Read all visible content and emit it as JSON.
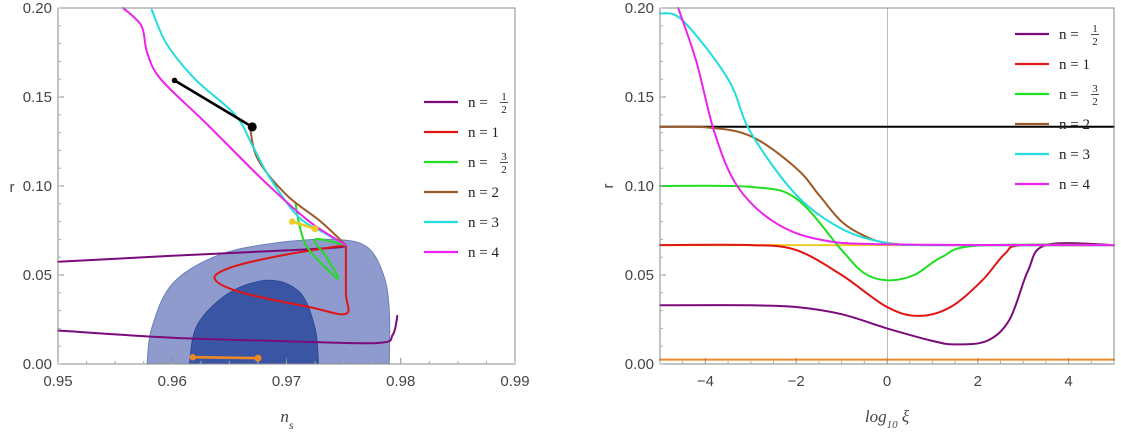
{
  "chart_data": [
    {
      "type": "line",
      "xlabel": "n_s",
      "ylabel": "r",
      "xlim": [
        0.95,
        0.99
      ],
      "ylim": [
        0.0,
        0.2
      ],
      "xticks": [
        "0.95",
        "0.96",
        "0.97",
        "0.98",
        "0.99"
      ],
      "yticks": [
        "0.00",
        "0.05",
        "0.10",
        "0.15",
        "0.20"
      ],
      "legend": {
        "placement": "right",
        "entries": [
          {
            "prefix": "n = ",
            "num": "1",
            "den": "2",
            "color": "#7b0a7b"
          },
          {
            "prefix": "n = 1",
            "color": "#e01414"
          },
          {
            "prefix": "n = ",
            "num": "3",
            "den": "2",
            "color": "#22dd22"
          },
          {
            "prefix": "n = 2",
            "color": "#9b5a28"
          },
          {
            "prefix": "n = 3",
            "color": "#22dddd"
          },
          {
            "prefix": "n = 4",
            "color": "#ee22ee"
          }
        ]
      },
      "contours": [
        {
          "level": "95%",
          "color": "#8e9bcc",
          "points": [
            [
              0.9578,
              0.0
            ],
            [
              0.9582,
              0.02
            ],
            [
              0.96,
              0.045
            ],
            [
              0.964,
              0.061
            ],
            [
              0.969,
              0.068
            ],
            [
              0.974,
              0.07
            ],
            [
              0.977,
              0.066
            ],
            [
              0.9785,
              0.05
            ],
            [
              0.979,
              0.03
            ],
            [
              0.979,
              0.0
            ]
          ]
        },
        {
          "level": "68%",
          "color": "#3b55a5",
          "points": [
            [
              0.9615,
              0.0
            ],
            [
              0.9622,
              0.022
            ],
            [
              0.965,
              0.04
            ],
            [
              0.9685,
              0.047
            ],
            [
              0.9712,
              0.04
            ],
            [
              0.9725,
              0.02
            ],
            [
              0.9728,
              0.0
            ]
          ]
        }
      ],
      "series": [
        {
          "key": "n=1/2",
          "color": "#7b0a7b",
          "segments": [
            [
              [
                0.95,
                0.0574
              ],
              [
                0.96,
                0.0608
              ],
              [
                0.97,
                0.0638
              ],
              [
                0.9745,
                0.0655
              ],
              [
                0.9752,
                0.0668
              ]
            ],
            [
              [
                0.95,
                0.0188
              ],
              [
                0.96,
                0.0148
              ],
              [
                0.97,
                0.0128
              ],
              [
                0.978,
                0.0118
              ],
              [
                0.9793,
                0.0165
              ],
              [
                0.9797,
                0.027
              ]
            ]
          ]
        },
        {
          "key": "n=1",
          "color": "#e01414",
          "segments": [
            [
              [
                0.9752,
                0.0668
              ],
              [
                0.97,
                0.0615
              ],
              [
                0.9655,
                0.055
              ],
              [
                0.9637,
                0.0482
              ],
              [
                0.966,
                0.0403
              ],
              [
                0.972,
                0.032
              ],
              [
                0.9752,
                0.0282
              ],
              [
                0.9752,
                0.04
              ],
              [
                0.9752,
                0.0668
              ]
            ]
          ]
        },
        {
          "key": "n=3/2",
          "color": "#22dd22",
          "segments": [
            [
              [
                0.9708,
                0.09
              ],
              [
                0.9712,
                0.076
              ],
              [
                0.972,
                0.064
              ],
              [
                0.9745,
                0.048
              ],
              [
                0.9735,
                0.06
              ],
              [
                0.9725,
                0.07
              ],
              [
                0.9752,
                0.0668
              ]
            ]
          ]
        },
        {
          "key": "n=2",
          "color": "#9b5a28",
          "segments": [
            [
              [
                0.9668,
                0.1332
              ],
              [
                0.9675,
                0.115
              ],
              [
                0.97,
                0.095
              ],
              [
                0.973,
                0.08
              ],
              [
                0.9752,
                0.0668
              ]
            ]
          ]
        },
        {
          "key": "n=3",
          "color": "#22dddd",
          "segments": [
            [
              [
                0.9582,
                0.199
              ],
              [
                0.9595,
                0.18
              ],
              [
                0.962,
                0.16
              ],
              [
                0.9655,
                0.14
              ],
              [
                0.967,
                0.123
              ],
              [
                0.9685,
                0.105
              ],
              [
                0.971,
                0.083
              ],
              [
                0.9735,
                0.073
              ],
              [
                0.9752,
                0.0668
              ]
            ]
          ]
        },
        {
          "key": "n=4",
          "color": "#ee22ee",
          "segments": [
            [
              [
                0.9557,
                0.2
              ],
              [
                0.9573,
                0.19
              ],
              [
                0.9578,
                0.175
              ],
              [
                0.959,
                0.16
              ],
              [
                0.963,
                0.135
              ],
              [
                0.968,
                0.103
              ],
              [
                0.972,
                0.08
              ],
              [
                0.9752,
                0.0668
              ]
            ]
          ]
        },
        {
          "key": "black",
          "color": "#000000",
          "marker": true,
          "segments": [
            [
              [
                0.9602,
                0.1593
              ],
              [
                0.967,
                0.1332
              ]
            ]
          ]
        },
        {
          "key": "orange",
          "color": "#ee8822",
          "marker": true,
          "segments": [
            [
              [
                0.9618,
                0.0038
              ],
              [
                0.9675,
                0.0033
              ]
            ]
          ]
        },
        {
          "key": "yellow",
          "color": "#eecc22",
          "marker": true,
          "segments": [
            [
              [
                0.9705,
                0.08
              ],
              [
                0.9725,
                0.076
              ]
            ]
          ]
        }
      ]
    },
    {
      "type": "line",
      "xlabel": "log10 ξ",
      "ylabel": "r",
      "xlim": [
        -5,
        5
      ],
      "ylim": [
        0.0,
        0.2
      ],
      "xticks": [
        "−4",
        "−2",
        "0",
        "2",
        "4"
      ],
      "yticks": [
        "0.00",
        "0.05",
        "0.10",
        "0.15",
        "0.20"
      ],
      "legend": {
        "placement": "top-right",
        "entries": [
          {
            "prefix": "n = ",
            "num": "1",
            "den": "2",
            "color": "#7b0a7b"
          },
          {
            "prefix": "n = 1",
            "color": "#e01414"
          },
          {
            "prefix": "n = ",
            "num": "3",
            "den": "2",
            "color": "#22dd22"
          },
          {
            "prefix": "n = 2",
            "color": "#9b5a28"
          },
          {
            "prefix": "n = 3",
            "color": "#22dddd"
          },
          {
            "prefix": "n = 4",
            "color": "#ee22ee"
          }
        ]
      },
      "series": [
        {
          "key": "black",
          "color": "#000000",
          "points": [
            [
              -5,
              0.1333
            ],
            [
              5,
              0.1333
            ]
          ]
        },
        {
          "key": "orange",
          "color": "#ee8822",
          "points": [
            [
              -5,
              0.0025
            ],
            [
              5,
              0.0025
            ]
          ]
        },
        {
          "key": "yellow",
          "color": "#eecc22",
          "points": [
            [
              -5,
              0.0668
            ],
            [
              5,
              0.0668
            ]
          ]
        },
        {
          "key": "n=1/2",
          "color": "#7b0a7b",
          "points": [
            [
              -5,
              0.033
            ],
            [
              -3,
              0.033
            ],
            [
              -2,
              0.032
            ],
            [
              -1,
              0.028
            ],
            [
              0,
              0.02
            ],
            [
              1,
              0.013
            ],
            [
              1.5,
              0.011
            ],
            [
              2.2,
              0.013
            ],
            [
              2.7,
              0.025
            ],
            [
              3.1,
              0.052
            ],
            [
              3.5,
              0.0668
            ],
            [
              5,
              0.0668
            ]
          ]
        },
        {
          "key": "n=1",
          "color": "#e01414",
          "points": [
            [
              -5,
              0.0668
            ],
            [
              -3,
              0.0668
            ],
            [
              -2,
              0.064
            ],
            [
              -1,
              0.05
            ],
            [
              0,
              0.032
            ],
            [
              0.7,
              0.027
            ],
            [
              1.4,
              0.032
            ],
            [
              2.1,
              0.047
            ],
            [
              2.6,
              0.062
            ],
            [
              3.0,
              0.0668
            ],
            [
              5,
              0.0668
            ]
          ]
        },
        {
          "key": "n=3/2",
          "color": "#22dd22",
          "points": [
            [
              -5,
              0.1
            ],
            [
              -3,
              0.0995
            ],
            [
              -2,
              0.093
            ],
            [
              -1,
              0.064
            ],
            [
              -0.5,
              0.051
            ],
            [
              0,
              0.047
            ],
            [
              0.6,
              0.05
            ],
            [
              1.2,
              0.06
            ],
            [
              2,
              0.0665
            ],
            [
              5,
              0.0668
            ]
          ]
        },
        {
          "key": "n=2",
          "color": "#9b5a28",
          "points": [
            [
              -5,
              0.1333
            ],
            [
              -4,
              0.133
            ],
            [
              -3,
              0.128
            ],
            [
              -2,
              0.11
            ],
            [
              -1.5,
              0.095
            ],
            [
              -1,
              0.08
            ],
            [
              -0.5,
              0.072
            ],
            [
              0,
              0.068
            ],
            [
              1,
              0.0668
            ],
            [
              5,
              0.0668
            ]
          ]
        },
        {
          "key": "n=3",
          "color": "#22dddd",
          "points": [
            [
              -5,
              0.197
            ],
            [
              -4.5,
              0.193
            ],
            [
              -3.5,
              0.16
            ],
            [
              -3,
              0.13
            ],
            [
              -2,
              0.095
            ],
            [
              -1,
              0.076
            ],
            [
              0,
              0.068
            ],
            [
              1,
              0.0668
            ],
            [
              5,
              0.0668
            ]
          ]
        },
        {
          "key": "n=4",
          "color": "#ee22ee",
          "points": [
            [
              -4.6,
              0.2
            ],
            [
              -4.2,
              0.17
            ],
            [
              -3.8,
              0.13
            ],
            [
              -3.3,
              0.1
            ],
            [
              -2.5,
              0.08
            ],
            [
              -1.5,
              0.07
            ],
            [
              0,
              0.0672
            ],
            [
              5,
              0.0668
            ]
          ]
        }
      ]
    }
  ]
}
